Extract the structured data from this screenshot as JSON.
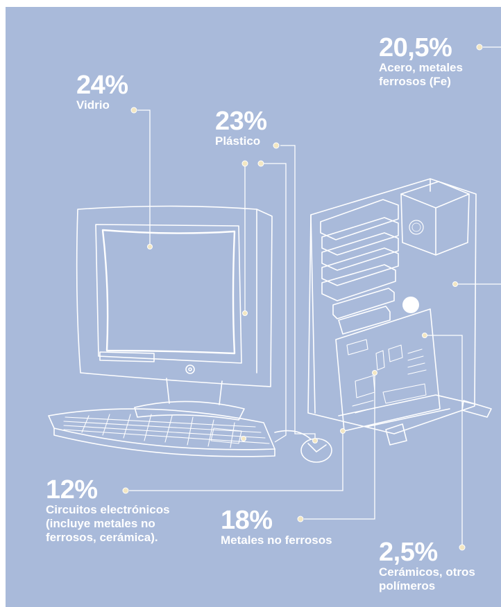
{
  "colors": {
    "background": "#a9bada",
    "ink": "#ffffff",
    "dot": "#f3e7c3"
  },
  "materials": [
    {
      "id": "glass",
      "percent": "24%",
      "label_lines": [
        "Vidrio"
      ]
    },
    {
      "id": "plastic",
      "percent": "23%",
      "label_lines": [
        "Plástico"
      ]
    },
    {
      "id": "steel",
      "percent": "20,5%",
      "label_lines": [
        "Acero, metales",
        "ferrosos (Fe)"
      ]
    },
    {
      "id": "circuits",
      "percent": "12%",
      "label_lines": [
        "Circuitos electrónicos",
        "(incluye metales no",
        "ferrosos, cerámica)."
      ]
    },
    {
      "id": "nonferrous",
      "percent": "18%",
      "label_lines": [
        "Metales no ferrosos"
      ]
    },
    {
      "id": "ceramics",
      "percent": "2,5%",
      "label_lines": [
        "Cerámicos, otros",
        "polímeros"
      ]
    }
  ]
}
